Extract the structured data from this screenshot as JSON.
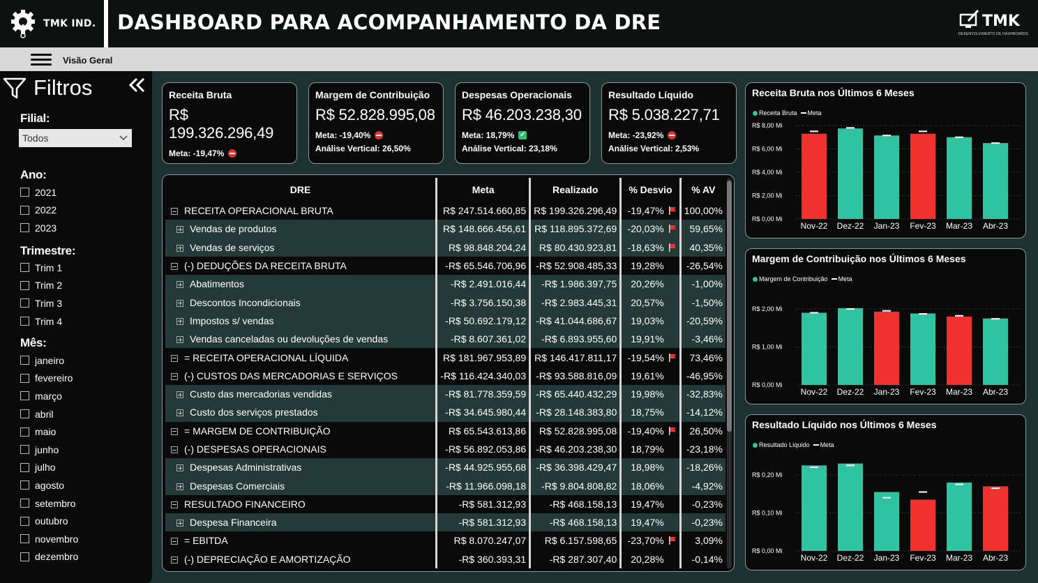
{
  "header": {
    "company": "TMK IND.",
    "title": "DASHBOARD PARA ACOMPANHAMENTO DA DRE",
    "brand_name": "TMK",
    "brand_sub": "DESENVOLVIMENTO DE DASHBOARDS"
  },
  "nav": {
    "page_label": "Visão Geral"
  },
  "sidebar": {
    "title": "Filtros",
    "filial_label": "Filial:",
    "filial_value": "Todos",
    "ano_label": "Ano:",
    "anos": [
      "2021",
      "2022",
      "2023"
    ],
    "trimestre_label": "Trimestre:",
    "trimestres": [
      "Trim 1",
      "Trim 2",
      "Trim 3",
      "Trim 4"
    ],
    "mes_label": "Mês:",
    "meses": [
      "janeiro",
      "fevereiro",
      "março",
      "abril",
      "maio",
      "junho",
      "julho",
      "agosto",
      "setembro",
      "outubro",
      "novembro",
      "dezembro"
    ]
  },
  "cards": [
    {
      "title": "Receita Bruta",
      "value": "R$ 199.326.296,49",
      "meta": "Meta:  -19,47%",
      "status": "negative",
      "av": ""
    },
    {
      "title": "Margem de Contribuição",
      "value": "R$ 52.828.995,08",
      "meta": "Meta:  -19,40%",
      "status": "negative",
      "av": "Análise Vertical: 26,50%"
    },
    {
      "title": "Despesas Operacionais",
      "value": "R$ 46.203.238,30",
      "meta": "Meta: 18,79%",
      "status": "positive",
      "av": "Análise Vertical: 23,18%"
    },
    {
      "title": "Resultado Líquido",
      "value": "R$ 5.038.227,71",
      "meta": "Meta:  -23,92%",
      "status": "negative",
      "av": "Análise Vertical: 2,53%"
    }
  ],
  "colors": {
    "accent": "#2fc3a1",
    "negative": "#f0322f",
    "panel": "#0a0a0a",
    "background": "#1d3230"
  },
  "table": {
    "headers": [
      "DRE",
      "Meta",
      "Realizado",
      "% Desvio",
      "% AV"
    ],
    "rows": [
      {
        "name": "RECEITA OPERACIONAL BRUTA",
        "level": 0,
        "meta": "R$ 247.514.660,85",
        "realizado": "R$ 199.326.296,49",
        "desvio": "-19,47%",
        "flag": true,
        "av": "100,00%"
      },
      {
        "name": "Vendas de produtos",
        "level": 1,
        "meta": "R$ 148.666.456,61",
        "realizado": "R$ 118.895.372,69",
        "desvio": "-20,03%",
        "flag": true,
        "av": "59,65%"
      },
      {
        "name": "Vendas de serviços",
        "level": 1,
        "meta": "R$ 98.848.204,24",
        "realizado": "R$ 80.430.923,81",
        "desvio": "-18,63%",
        "flag": true,
        "av": "40,35%"
      },
      {
        "name": "(-) DEDUÇÕES DA RECEITA BRUTA",
        "level": 0,
        "meta": "-R$ 65.546.706,96",
        "realizado": "-R$ 52.908.485,33",
        "desvio": "19,28%",
        "flag": false,
        "av": "-26,54%"
      },
      {
        "name": "Abatimentos",
        "level": 1,
        "meta": "-R$ 2.491.016,44",
        "realizado": "-R$ 1.986.397,75",
        "desvio": "20,26%",
        "flag": false,
        "av": "-1,00%"
      },
      {
        "name": "Descontos Incondicionais",
        "level": 1,
        "meta": "-R$ 3.756.150,38",
        "realizado": "-R$ 2.983.445,31",
        "desvio": "20,57%",
        "flag": false,
        "av": "-1,50%"
      },
      {
        "name": "Impostos s/ vendas",
        "level": 1,
        "meta": "-R$ 50.692.179,12",
        "realizado": "-R$ 41.044.686,67",
        "desvio": "19,03%",
        "flag": false,
        "av": "-20,59%"
      },
      {
        "name": "Vendas canceladas ou devoluções de vendas",
        "level": 1,
        "meta": "-R$ 8.607.361,02",
        "realizado": "-R$ 6.893.955,60",
        "desvio": "19,91%",
        "flag": false,
        "av": "-3,46%"
      },
      {
        "name": "= RECEITA OPERACIONAL LÍQUIDA",
        "level": 0,
        "meta": "R$ 181.967.953,89",
        "realizado": "R$ 146.417.811,17",
        "desvio": "-19,54%",
        "flag": true,
        "av": "73,46%"
      },
      {
        "name": "(-) CUSTOS DAS MERCADORIAS E SERVIÇOS",
        "level": 0,
        "meta": "-R$ 116.424.340,03",
        "realizado": "-R$ 93.588.816,09",
        "desvio": "19,61%",
        "flag": false,
        "av": "-46,95%"
      },
      {
        "name": "Custo das mercadorias vendidas",
        "level": 1,
        "meta": "-R$ 81.778.359,59",
        "realizado": "-R$ 65.440.432,29",
        "desvio": "19,98%",
        "flag": false,
        "av": "-32,83%"
      },
      {
        "name": "Custo dos serviços prestados",
        "level": 1,
        "meta": "-R$ 34.645.980,44",
        "realizado": "-R$ 28.148.383,80",
        "desvio": "18,75%",
        "flag": false,
        "av": "-14,12%"
      },
      {
        "name": "= MARGEM DE CONTRIBUIÇÃO",
        "level": 0,
        "meta": "R$ 65.543.613,86",
        "realizado": "R$ 52.828.995,08",
        "desvio": "-19,40%",
        "flag": true,
        "av": "26,50%"
      },
      {
        "name": "(-) DESPESAS OPERACIONAIS",
        "level": 0,
        "meta": "-R$ 56.892.053,86",
        "realizado": "-R$ 46.203.238,30",
        "desvio": "18,79%",
        "flag": false,
        "av": "-23,18%"
      },
      {
        "name": "Despesas Administrativas",
        "level": 1,
        "meta": "-R$ 44.925.955,68",
        "realizado": "-R$ 36.398.429,47",
        "desvio": "18,98%",
        "flag": false,
        "av": "-18,26%"
      },
      {
        "name": "Despesas Comerciais",
        "level": 1,
        "meta": "-R$ 11.966.098,18",
        "realizado": "-R$ 9.804.808,82",
        "desvio": "18,06%",
        "flag": false,
        "av": "-4,92%"
      },
      {
        "name": "RESULTADO FINANCEIRO",
        "level": 0,
        "meta": "-R$ 581.312,93",
        "realizado": "-R$ 468.158,13",
        "desvio": "19,47%",
        "flag": false,
        "av": "-0,23%"
      },
      {
        "name": "Despesa Financeira",
        "level": 1,
        "meta": "-R$ 581.312,93",
        "realizado": "-R$ 468.158,13",
        "desvio": "19,47%",
        "flag": false,
        "av": "-0,23%"
      },
      {
        "name": "= EBITDA",
        "level": 0,
        "meta": "R$ 8.070.247,07",
        "realizado": "R$ 6.157.598,65",
        "desvio": "-23,70%",
        "flag": true,
        "av": "3,09%"
      },
      {
        "name": "(-) DEPRECIAÇÃO E AMORTIZAÇÃO",
        "level": 0,
        "meta": "-R$ 360.393,31",
        "realizado": "-R$ 287.307,40",
        "desvio": "20,28%",
        "flag": false,
        "av": "-0,14%"
      }
    ]
  },
  "chart_data": [
    {
      "type": "bar",
      "title": "Receita Bruta nos Últimos 6 Meses",
      "categories": [
        "Nov-22",
        "Dez-22",
        "Jan-23",
        "Fev-23",
        "Mar-23",
        "Abr-23"
      ],
      "series": [
        {
          "name": "Receita Bruta",
          "values": [
            7.3,
            7.75,
            7.15,
            7.3,
            7.0,
            6.5
          ],
          "colors": [
            "#f0322f",
            "#2fc3a1",
            "#2fc3a1",
            "#f0322f",
            "#2fc3a1",
            "#2fc3a1"
          ]
        },
        {
          "name": "Meta",
          "values": [
            7.5,
            7.8,
            7.15,
            7.5,
            7.0,
            6.5
          ]
        }
      ],
      "yticks": [
        "R$ 0,00 Mi",
        "R$ 2,00 Mi",
        "R$ 4,00 Mi",
        "R$ 6,00 Mi",
        "R$ 8,00 Mi"
      ],
      "ylim": [
        0,
        8
      ],
      "legend": "top-left",
      "grid": true
    },
    {
      "type": "bar",
      "title": "Margem de Contribuição nos Últimos 6 Meses",
      "categories": [
        "Nov-22",
        "Dez-22",
        "Jan-23",
        "Fev-23",
        "Mar-23",
        "Abr-23"
      ],
      "series": [
        {
          "name": "Margem de Contribuição",
          "values": [
            1.9,
            2.02,
            1.93,
            1.88,
            1.8,
            1.75
          ],
          "colors": [
            "#2fc3a1",
            "#2fc3a1",
            "#f0322f",
            "#2fc3a1",
            "#f0322f",
            "#2fc3a1"
          ]
        },
        {
          "name": "Meta",
          "values": [
            1.9,
            2.0,
            1.95,
            1.87,
            1.82,
            1.74
          ]
        }
      ],
      "yticks": [
        "R$ 0,00 Mi",
        "R$ 1,00 Mi",
        "R$ 2,00 Mi"
      ],
      "ylim": [
        0,
        2.2
      ],
      "legend": "top-left",
      "grid": true
    },
    {
      "type": "bar",
      "title": "Resultado Líquido nos Últimos 6 Meses",
      "categories": [
        "Nov-22",
        "Dez-22",
        "Jan-23",
        "Fev-23",
        "Mar-23",
        "Abr-23"
      ],
      "series": [
        {
          "name": "Resultado Líquido",
          "values": [
            0.225,
            0.23,
            0.155,
            0.135,
            0.18,
            0.17
          ],
          "colors": [
            "#2fc3a1",
            "#2fc3a1",
            "#2fc3a1",
            "#f0322f",
            "#2fc3a1",
            "#f0322f"
          ]
        },
        {
          "name": "Meta",
          "values": [
            0.22,
            0.225,
            0.14,
            0.155,
            0.175,
            0.165
          ]
        }
      ],
      "yticks": [
        "R$ 0,00 Mi",
        "R$ 0,10 Mi",
        "R$ 0,20 Mi"
      ],
      "ylim": [
        0,
        0.26
      ],
      "legend": "top-left",
      "grid": true
    }
  ]
}
